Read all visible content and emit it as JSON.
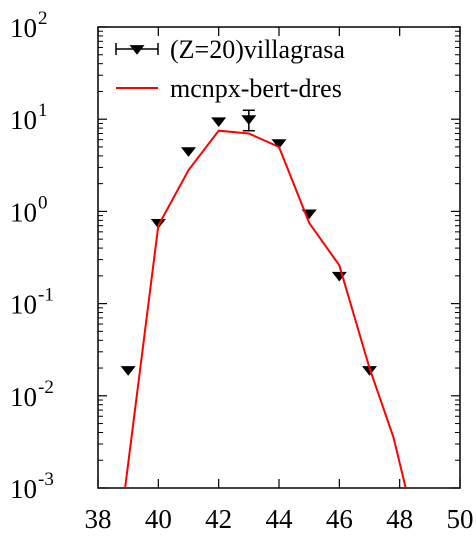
{
  "chart_data": {
    "type": "scatter",
    "title": "",
    "xlabel": "",
    "ylabel": "",
    "xlim": [
      38,
      50
    ],
    "ylim": [
      0.001,
      100
    ],
    "yscale": "log",
    "grid": false,
    "legend_position": "top-right",
    "x_ticks": [
      {
        "value": 38,
        "label": "38"
      },
      {
        "value": 40,
        "label": "40"
      },
      {
        "value": 42,
        "label": "42"
      },
      {
        "value": 44,
        "label": "44"
      },
      {
        "value": 46,
        "label": "46"
      },
      {
        "value": 48,
        "label": "48"
      },
      {
        "value": 50,
        "label": "50"
      }
    ],
    "y_ticks": [
      {
        "value": 0.001,
        "base": "10",
        "exp": "-3"
      },
      {
        "value": 0.01,
        "base": "10",
        "exp": "-2"
      },
      {
        "value": 0.1,
        "base": "10",
        "exp": "-1"
      },
      {
        "value": 1,
        "base": "10",
        "exp": "0"
      },
      {
        "value": 10,
        "base": "10",
        "exp": "1"
      },
      {
        "value": 100,
        "base": "10",
        "exp": "2"
      }
    ],
    "series": [
      {
        "name": "(Z=20)villagrasa",
        "kind": "points",
        "marker": "triangle-down",
        "color": "#000000",
        "x": [
          39,
          40,
          41,
          42,
          43,
          44,
          45,
          46,
          47
        ],
        "y": [
          0.019,
          0.75,
          4.5,
          9.5,
          10.0,
          5.5,
          0.95,
          0.2,
          0.019
        ],
        "y_err": [
          0,
          0,
          0,
          0,
          2.5,
          0,
          0,
          0,
          0
        ]
      },
      {
        "name": "mcnpx-bert-dres",
        "kind": "line",
        "color": "#ff0000",
        "x": [
          38.9,
          40,
          41,
          42,
          43,
          44,
          45,
          46,
          47,
          47.8,
          48.2
        ],
        "y": [
          0.001,
          0.7,
          2.8,
          7.5,
          7.0,
          5.0,
          0.75,
          0.26,
          0.02,
          0.0035,
          0.001
        ]
      }
    ]
  }
}
